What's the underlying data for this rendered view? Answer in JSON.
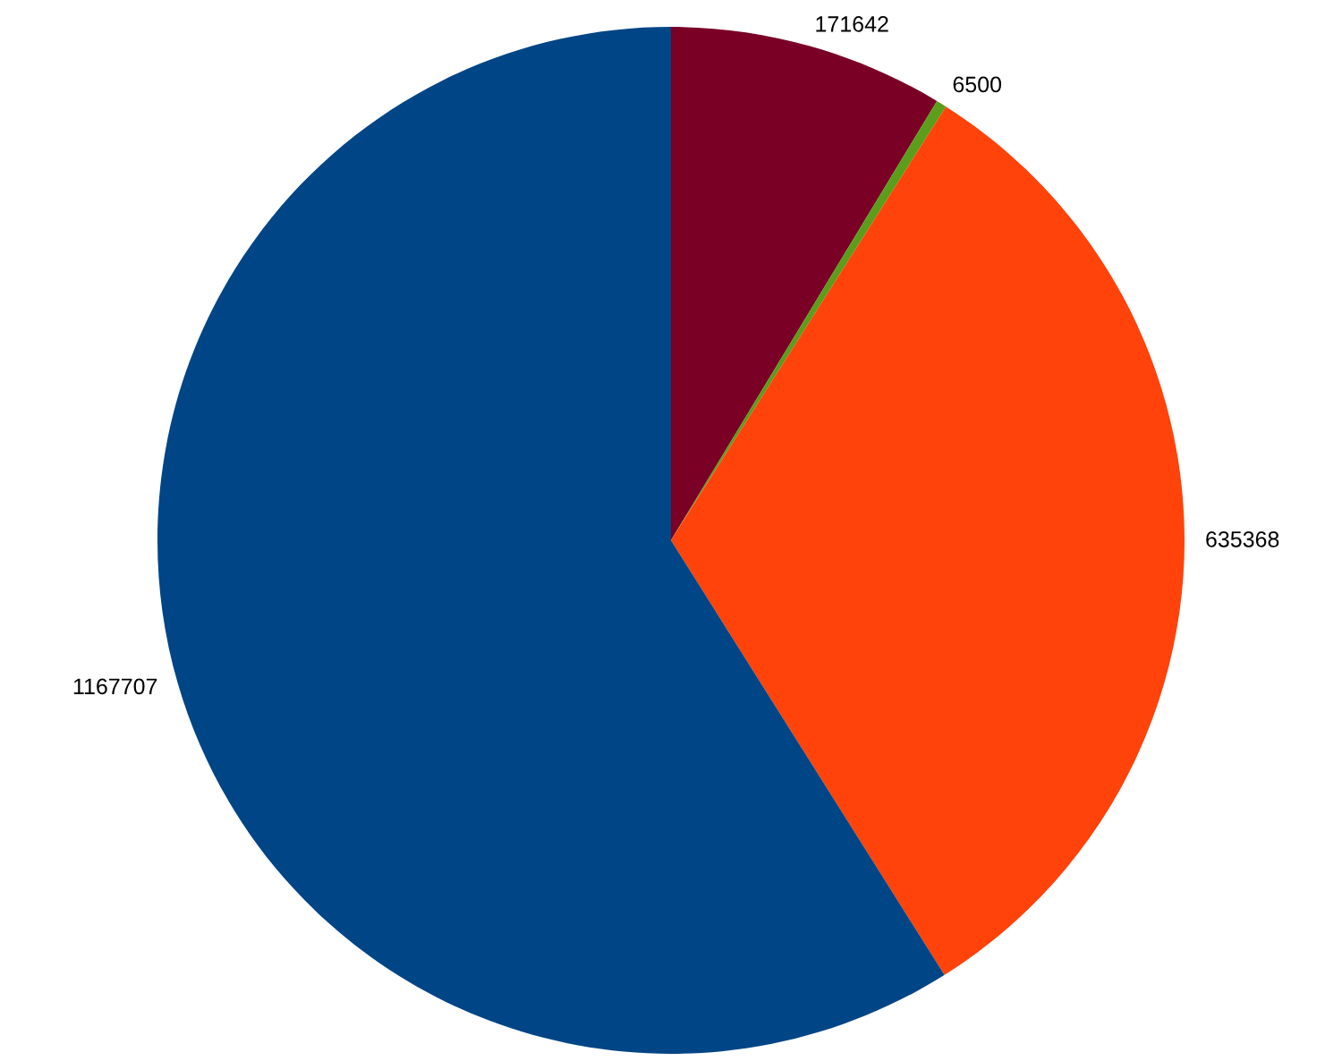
{
  "chart_data": {
    "type": "pie",
    "categories": [
      null,
      null,
      null,
      null
    ],
    "values": [
      171642,
      6500,
      635368,
      1167707
    ],
    "colors": [
      "#7a0026",
      "#5a9e1a",
      "#ff430a",
      "#004585"
    ],
    "data_labels": true
  }
}
